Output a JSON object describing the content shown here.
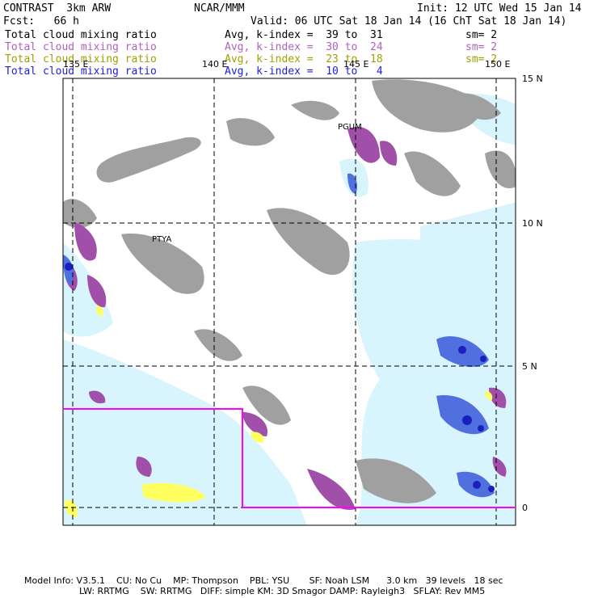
{
  "header": {
    "line1_left": "CONTRAST  3km ARW",
    "line1_center": "NCAR/MMM",
    "line1_right": "Init: 12 UTC Wed 15 Jan 14",
    "line2_left": "Fcst:   66 h",
    "line2_right": "Valid: 06 UTC Sat 18 Jan 14 (16 ChT Sat 18 Jan 14)"
  },
  "fields": [
    {
      "name": "Total cloud mixing ratio",
      "stat": "Avg, k-index =  39 to  31",
      "sm": "sm= 2",
      "color": "#000000"
    },
    {
      "name": "Total cloud mixing ratio",
      "stat": "Avg, k-index =  30 to  24",
      "sm": "sm= 2",
      "color": "#b060c0"
    },
    {
      "name": "Total cloud mixing ratio",
      "stat": "Avg, k-index =  23 to  18",
      "sm": "sm= 2",
      "color": "#a0a000"
    },
    {
      "name": "Total cloud mixing ratio",
      "stat": "Avg, k-index =  10 to   4",
      "sm": "",
      "color": "#2020e0"
    }
  ],
  "map": {
    "lon_labels": [
      "135 E",
      "140 E",
      "145 E",
      "150 E"
    ],
    "lat_labels": [
      "15 N",
      "10 N",
      "5 N",
      "0"
    ],
    "stations": [
      "PGUM",
      "PTYA"
    ],
    "colors": {
      "gray": "#a0a0a0",
      "purple": "#a050a8",
      "yellow": "#ffff60",
      "lightblue": "#d8f4fc",
      "blue": "#5070e0",
      "darkblue": "#1a20c0",
      "magenta": "#ff00ff"
    }
  },
  "footer": {
    "line1": "Model Info: V3.5.1    CU: No Cu    MP: Thompson    PBL: YSU       SF: Noah LSM      3.0 km   39 levels   18 sec",
    "line2": "LW: RRTMG    SW: RRTMG   DIFF: simple KM: 3D Smagor DAMP: Rayleigh3   SFLAY: Rev MM5"
  }
}
